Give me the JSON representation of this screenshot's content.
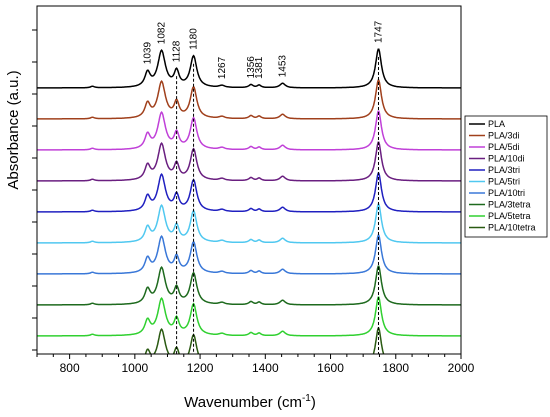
{
  "chart_data": {
    "type": "line",
    "xlabel": "Wavenumber (cm",
    "xlabel_sup": "-1",
    "xlabel_end": ")",
    "ylabel": "Absorbance (a.u.)",
    "xlim": [
      700,
      2000
    ],
    "x_ticks": [
      800,
      1000,
      1200,
      1400,
      1600,
      1800,
      2000
    ],
    "y_ticks_visible": false,
    "grid": false,
    "legend_position": "right",
    "peak_labels": [
      "1039",
      "1082",
      "1128",
      "1180",
      "1267",
      "1356",
      "1381",
      "1453",
      "1747"
    ],
    "peak_positions": [
      1039,
      1082,
      1128,
      1180,
      1267,
      1356,
      1381,
      1453,
      1747
    ],
    "dashed_lines": [
      1128,
      1180,
      1747
    ],
    "peaks": [
      {
        "x": 870,
        "w": 7,
        "a": 0.03
      },
      {
        "x": 1039,
        "w": 10,
        "a": 0.28
      },
      {
        "x": 1082,
        "w": 14,
        "a": 0.72
      },
      {
        "x": 1128,
        "w": 9,
        "a": 0.3
      },
      {
        "x": 1180,
        "w": 12,
        "a": 0.62
      },
      {
        "x": 1267,
        "w": 10,
        "a": 0.04
      },
      {
        "x": 1356,
        "w": 8,
        "a": 0.06
      },
      {
        "x": 1381,
        "w": 7,
        "a": 0.05
      },
      {
        "x": 1453,
        "w": 10,
        "a": 0.09
      },
      {
        "x": 1747,
        "w": 11,
        "a": 0.78
      }
    ],
    "series": [
      {
        "name": "PLA",
        "color": "#000000"
      },
      {
        "name": "PLA/3di",
        "color": "#a0401c"
      },
      {
        "name": "PLA/5di",
        "color": "#c040d8"
      },
      {
        "name": "PLA/10di",
        "color": "#6a1f80"
      },
      {
        "name": "PLA/3tri",
        "color": "#2020c0"
      },
      {
        "name": "PLA/5tri",
        "color": "#50c8f0"
      },
      {
        "name": "PLA/10tri",
        "color": "#3a78d8"
      },
      {
        "name": "PLA/3tetra",
        "color": "#1e6a1e"
      },
      {
        "name": "PLA/5tetra",
        "color": "#30d030"
      },
      {
        "name": "PLA/10tetra",
        "color": "#2a5a12"
      }
    ]
  }
}
